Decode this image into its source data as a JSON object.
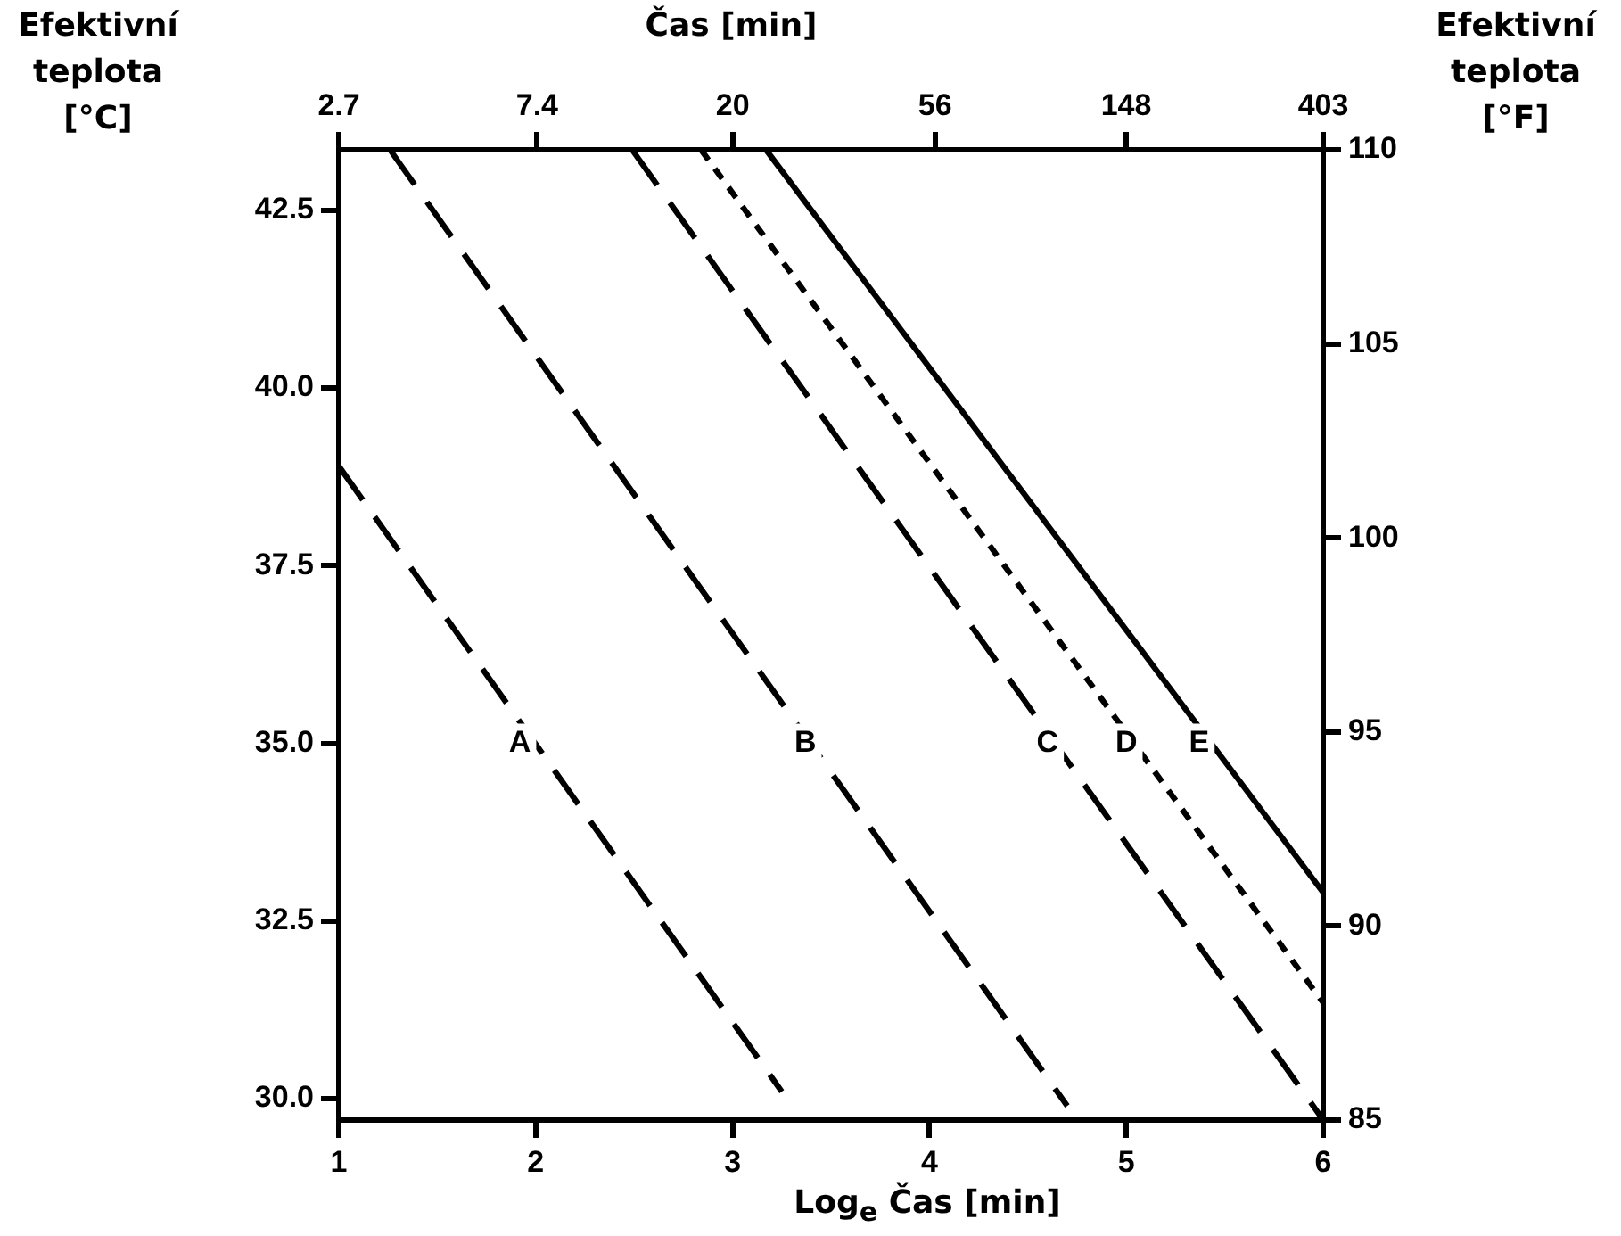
{
  "chart_data": {
    "type": "line",
    "xlabel": "Log$_{e}$ Čas [min]",
    "x2label": "Čas [min]",
    "ylabel": "Efektivní teplota [°C]",
    "y2label": "Efektivní teplota [°F]",
    "xlim": [
      1,
      6
    ],
    "xticks": [
      1,
      2,
      3,
      4,
      5,
      6
    ],
    "x2lim": [
      2.7,
      403
    ],
    "x2ticks": [
      2.7,
      7.4,
      20,
      56,
      148,
      403
    ],
    "log": "x2",
    "ylim": [
      29.7,
      43.35
    ],
    "yticks": [
      {
        "value": 30,
        "label": "30.0"
      },
      32.5,
      {
        "value": 35,
        "label": "35.0"
      },
      37.5,
      {
        "value": 40,
        "label": "40.0"
      },
      42.5
    ],
    "y2lim": [
      85,
      110
    ],
    "y2ticks": [
      85,
      90,
      95,
      100,
      105,
      110
    ],
    "grid": false,
    "legend": false,
    "marker": "none",
    "series": [
      {
        "color": "#000000",
        "line_style": "dashed",
        "x": [
          1,
          3.25
        ],
        "values": [
          38.9,
          30.1
        ]
      },
      {
        "color": "#000000",
        "line_style": "dashed",
        "x": [
          1.26,
          4.7
        ],
        "values": [
          43.35,
          29.9
        ]
      },
      {
        "color": "#000000",
        "line_style": "dashed",
        "x": [
          2.49,
          6
        ],
        "values": [
          43.35,
          29.7
        ]
      },
      {
        "color": "#000000",
        "line_style": "dotted",
        "x": [
          2.84,
          6
        ],
        "values": [
          43.35,
          31.35
        ]
      },
      {
        "color": "#000000",
        "line_style": "solid",
        "x": [
          3.17,
          6
        ],
        "values": [
          43.35,
          32.9
        ]
      }
    ],
    "annotations": [
      {
        "text": "A",
        "x": 1.92,
        "y": 35
      },
      {
        "text": "B",
        "x": 3.37,
        "y": 35
      },
      {
        "text": "C",
        "x": 4.6,
        "y": 35
      },
      {
        "text": "D",
        "x": 5.0,
        "y": 35
      },
      {
        "text": "E",
        "x": 5.37,
        "y": 35
      }
    ]
  }
}
